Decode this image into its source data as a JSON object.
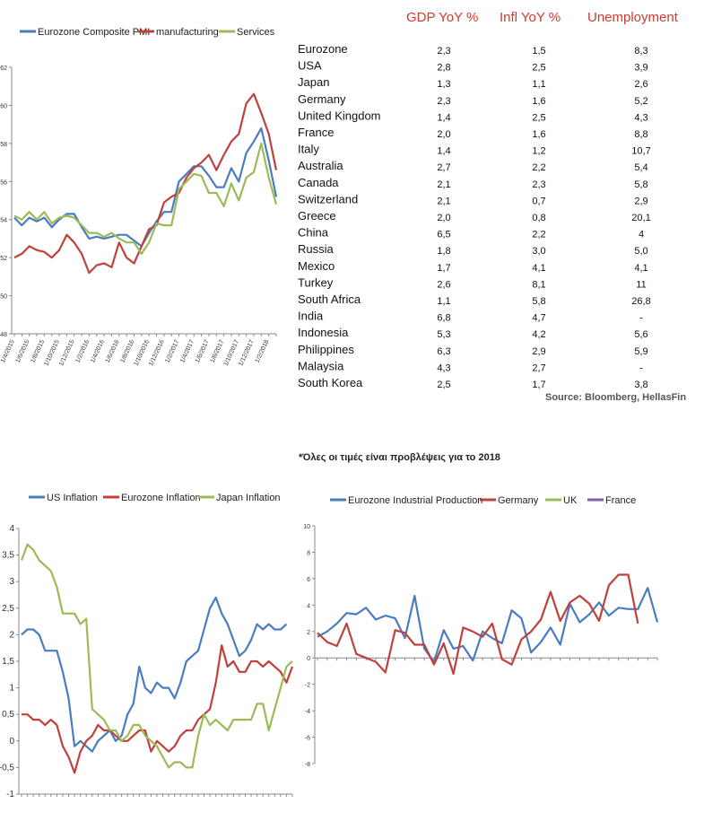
{
  "chart_data": [
    {
      "type": "line",
      "ylim": [
        48,
        62
      ],
      "y_ticks": [
        "48",
        "50",
        "52",
        "54",
        "56",
        "58",
        "60",
        "62"
      ],
      "x_tick_labels": [
        "1/4/2015",
        "1/6/2015",
        "1/8/2015",
        "1/10/2015",
        "1/12/2015",
        "1/2/2016",
        "1/4/2016",
        "1/6/2016",
        "1/8/2016",
        "1/10/2016",
        "1/12/2016",
        "1/2/2017",
        "1/4/2017",
        "1/6/2017",
        "1/8/2017",
        "1/10/2017",
        "1/12/2017",
        "1/2/2018"
      ],
      "series": [
        {
          "name": "Eurozone Composite PMI",
          "color": "#4a7cc0",
          "values": [
            54.1,
            53.7,
            54.1,
            53.9,
            54.1,
            53.6,
            54.0,
            54.3,
            54.3,
            53.6,
            53.0,
            53.1,
            53.0,
            53.1,
            53.2,
            53.2,
            52.9,
            52.6,
            53.3,
            53.9,
            54.4,
            54.4,
            56.0,
            56.4,
            56.8,
            56.8,
            56.3,
            55.7,
            55.7,
            56.7,
            56.0,
            57.5,
            58.1,
            58.8,
            57.1,
            55.2
          ]
        },
        {
          "name": "manufacturing",
          "color": "#c0403c",
          "values": [
            52.0,
            52.2,
            52.6,
            52.4,
            52.3,
            52.0,
            52.4,
            53.2,
            52.8,
            52.2,
            51.2,
            51.6,
            51.7,
            51.5,
            52.8,
            52.0,
            51.7,
            52.6,
            53.5,
            53.7,
            54.9,
            55.2,
            55.4,
            56.2,
            56.7,
            57.0,
            57.4,
            56.6,
            57.4,
            58.1,
            58.5,
            60.1,
            60.6,
            59.6,
            58.5,
            56.6
          ]
        },
        {
          "name": "Services",
          "color": "#9bbb59",
          "values": [
            54.2,
            54.0,
            54.4,
            54.0,
            54.4,
            53.8,
            54.1,
            54.2,
            54.1,
            53.7,
            53.3,
            53.3,
            53.1,
            53.3,
            53.0,
            52.8,
            52.8,
            52.2,
            52.8,
            53.8,
            53.7,
            53.7,
            55.6,
            56.0,
            56.4,
            56.3,
            55.4,
            55.4,
            54.7,
            55.9,
            55.0,
            56.2,
            56.5,
            58.0,
            56.2,
            54.8
          ]
        }
      ]
    },
    {
      "type": "table",
      "columns": [
        "GDP YoY %",
        "Infl YoY %",
        "Unemployment"
      ],
      "rows": [
        {
          "country": "Eurozone",
          "gdp": "2,3",
          "infl": "1,5",
          "unemp": "8,3"
        },
        {
          "country": "USA",
          "gdp": "2,8",
          "infl": "2,5",
          "unemp": "3,9"
        },
        {
          "country": "Japan",
          "gdp": "1,3",
          "infl": "1,1",
          "unemp": "2,6"
        },
        {
          "country": "Germany",
          "gdp": "2,3",
          "infl": "1,6",
          "unemp": "5,2"
        },
        {
          "country": "United Kingdom",
          "gdp": "1,4",
          "infl": "2,5",
          "unemp": "4,3"
        },
        {
          "country": "France",
          "gdp": "2,0",
          "infl": "1,6",
          "unemp": "8,8"
        },
        {
          "country": "Italy",
          "gdp": "1,4",
          "infl": "1,2",
          "unemp": "10,7"
        },
        {
          "country": "Australia",
          "gdp": "2,7",
          "infl": "2,2",
          "unemp": "5,4"
        },
        {
          "country": "Canada",
          "gdp": "2,1",
          "infl": "2,3",
          "unemp": "5,8"
        },
        {
          "country": "Switzerland",
          "gdp": "2,1",
          "infl": "0,7",
          "unemp": "2,9"
        },
        {
          "country": "Greece",
          "gdp": "2,0",
          "infl": "0,8",
          "unemp": "20,1"
        },
        {
          "country": "China",
          "gdp": "6,5",
          "infl": "2,2",
          "unemp": "4"
        },
        {
          "country": "Russia",
          "gdp": "1,8",
          "infl": "3,0",
          "unemp": "5,0"
        },
        {
          "country": "Mexico",
          "gdp": "1,7",
          "infl": "4,1",
          "unemp": "4,1"
        },
        {
          "country": "Turkey",
          "gdp": "2,6",
          "infl": "8,1",
          "unemp": "11"
        },
        {
          "country": "South Africa",
          "gdp": "1,1",
          "infl": "5,8",
          "unemp": "26,8"
        },
        {
          "country": "India",
          "gdp": "6,8",
          "infl": "4,7",
          "unemp": "-"
        },
        {
          "country": "Indonesia",
          "gdp": "5,3",
          "infl": "4,2",
          "unemp": "5,6"
        },
        {
          "country": "Philippines",
          "gdp": "6,3",
          "infl": "2,9",
          "unemp": "5,9"
        },
        {
          "country": "Malaysia",
          "gdp": "4,3",
          "infl": "2,7",
          "unemp": "-"
        },
        {
          "country": "South Korea",
          "gdp": "2,5",
          "infl": "1,7",
          "unemp": "3,8"
        }
      ],
      "source": "Source: Bloomberg, HellasFin",
      "footnote": "*Όλες οι τιμές είναι προβλέψεις για το 2018"
    },
    {
      "type": "line",
      "ylim": [
        -1,
        4
      ],
      "y_ticks": [
        "-1",
        "-0,5",
        "0",
        "0,5",
        "1",
        "1,5",
        "2",
        "2,5",
        "3",
        "3,5",
        "4"
      ],
      "series": [
        {
          "name": "US Inflation",
          "color": "#4a7cc0",
          "values": [
            2.0,
            2.1,
            2.1,
            2.0,
            1.7,
            1.7,
            1.7,
            1.3,
            0.8,
            -0.1,
            0.0,
            -0.1,
            -0.2,
            0.0,
            0.1,
            0.2,
            0.0,
            0.1,
            0.5,
            0.7,
            1.4,
            1.0,
            0.9,
            1.1,
            1.0,
            1.0,
            0.8,
            1.1,
            1.5,
            1.6,
            1.7,
            2.1,
            2.5,
            2.7,
            2.4,
            2.2,
            1.9,
            1.6,
            1.7,
            1.9,
            2.2,
            2.1,
            2.2,
            2.1,
            2.1,
            2.2
          ]
        },
        {
          "name": "Eurozone Inflation",
          "color": "#c0403c",
          "values": [
            0.5,
            0.5,
            0.4,
            0.4,
            0.3,
            0.4,
            0.3,
            -0.1,
            -0.3,
            -0.6,
            -0.2,
            0.0,
            0.1,
            0.3,
            0.2,
            0.2,
            0.1,
            0.0,
            0.0,
            0.1,
            0.2,
            0.2,
            -0.2,
            0.0,
            -0.1,
            -0.2,
            -0.1,
            0.1,
            0.2,
            0.2,
            0.4,
            0.5,
            0.6,
            1.1,
            1.8,
            1.4,
            1.5,
            1.3,
            1.3,
            1.5,
            1.5,
            1.4,
            1.5,
            1.4,
            1.3,
            1.1,
            1.4
          ]
        },
        {
          "name": "Japan Inflation",
          "color": "#9bbb59",
          "values": [
            3.4,
            3.7,
            3.6,
            3.4,
            3.3,
            3.2,
            2.9,
            2.4,
            2.4,
            2.4,
            2.2,
            2.3,
            0.6,
            0.5,
            0.4,
            0.2,
            0.2,
            0.0,
            0.1,
            0.3,
            0.3,
            0.1,
            0.0,
            -0.1,
            -0.3,
            -0.5,
            -0.4,
            -0.4,
            -0.5,
            -0.5,
            0.1,
            0.5,
            0.3,
            0.4,
            0.3,
            0.2,
            0.4,
            0.4,
            0.4,
            0.4,
            0.7,
            0.7,
            0.2,
            0.6,
            1.0,
            1.4,
            1.5
          ]
        }
      ]
    },
    {
      "type": "line",
      "ylim": [
        -8,
        10
      ],
      "y_ticks": [
        "-8",
        "-6",
        "-4",
        "-2",
        "0",
        "2",
        "4",
        "6",
        "8",
        "10"
      ],
      "series": [
        {
          "name": "Eurozone Industrial Production",
          "color": "#4a7cc0",
          "values": [
            1.6,
            2.0,
            2.6,
            3.4,
            3.3,
            3.8,
            2.9,
            3.2,
            3.0,
            1.5,
            4.7,
            0.7,
            -0.3,
            2.1,
            0.7,
            0.9,
            -0.2,
            2.0,
            1.5,
            1.1,
            3.6,
            3.0,
            0.4,
            1.2,
            2.3,
            1.0,
            4.1,
            2.7,
            3.3,
            4.2,
            3.2,
            3.8,
            3.7,
            3.7,
            5.3,
            2.7
          ]
        },
        {
          "name": "Germany",
          "color": "#c0403c",
          "values": [
            1.9,
            1.2,
            0.9,
            2.6,
            0.3,
            0.0,
            -0.3,
            -1.1,
            2.1,
            1.9,
            1.0,
            1.0,
            -0.5,
            1.1,
            -1.2,
            2.3,
            2.0,
            1.6,
            2.6,
            -0.1,
            -0.5,
            1.4,
            2.0,
            2.9,
            5.0,
            2.8,
            4.2,
            4.7,
            4.1,
            2.8,
            5.5,
            6.3,
            6.3,
            2.6
          ]
        },
        {
          "name": "UK",
          "color": "#9bbb59",
          "values": []
        },
        {
          "name": "France",
          "color": "#7b5fb0",
          "values": []
        }
      ]
    }
  ]
}
